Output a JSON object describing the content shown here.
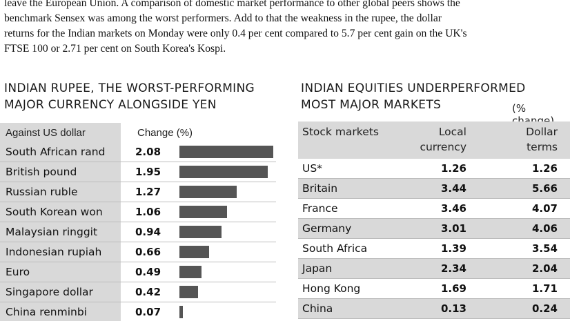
{
  "intro": {
    "lines": [
      "leave the European Union. A comparison of domestic market performance to other global peers shows the",
      "benchmark Sensex was among the worst performers. Add to that the weakness in the rupee, the dollar",
      "returns for the Indian markets on Monday were only 0.4 per cent compared to 5.7 per cent gain on the UK's",
      "FTSE 100 or 2.71 per cent on South Korea's Kospi."
    ]
  },
  "left": {
    "headline_line1": "INDIAN RUPEE, THE WORST-PERFORMING",
    "headline_line2": "MAJOR CURRENCY ALONGSIDE YEN",
    "col_currency": "Against US dollar",
    "col_change": "Change (%)",
    "chart_data": {
      "type": "bar",
      "categories": [
        "South African rand",
        "British pound",
        "Russian ruble",
        "South Korean won",
        "Malaysian ringgit",
        "Indonesian rupiah",
        "Euro",
        "Singapore dollar",
        "China renminbi"
      ],
      "values": [
        2.08,
        1.95,
        1.27,
        1.06,
        0.94,
        0.66,
        0.49,
        0.42,
        0.07
      ],
      "value_labels": [
        "2.08",
        "1.95",
        "1.27",
        "1.06",
        "0.94",
        "0.66",
        "0.49",
        "0.42",
        "0.07"
      ],
      "title": "INDIAN RUPEE, THE WORST-PERFORMING MAJOR CURRENCY ALONGSIDE YEN",
      "xlabel": "Change (%)",
      "ylabel": "Against US dollar",
      "xlim": [
        0,
        2.08
      ],
      "orientation": "horizontal",
      "bar_color": "#555555"
    }
  },
  "right": {
    "headline_line1": "INDIAN EQUITIES UNDERPERFORMED",
    "headline_line2": "MOST MAJOR MARKETS",
    "note": "(% change)",
    "col_market": "Stock markets",
    "col_local_1": "Local",
    "col_local_2": "currency",
    "col_dollar_1": "Dollar",
    "col_dollar_2": "terms",
    "rows": [
      {
        "market": "US*",
        "local": "1.26",
        "dollar": "1.26"
      },
      {
        "market": "Britain",
        "local": "3.44",
        "dollar": "5.66"
      },
      {
        "market": "France",
        "local": "3.46",
        "dollar": "4.07"
      },
      {
        "market": "Germany",
        "local": "3.01",
        "dollar": "4.06"
      },
      {
        "market": "South Africa",
        "local": "1.39",
        "dollar": "3.54"
      },
      {
        "market": "Japan",
        "local": "2.34",
        "dollar": "2.04"
      },
      {
        "market": "Hong Kong",
        "local": "1.69",
        "dollar": "1.71"
      },
      {
        "market": "China",
        "local": "0.13",
        "dollar": "0.24"
      }
    ]
  }
}
